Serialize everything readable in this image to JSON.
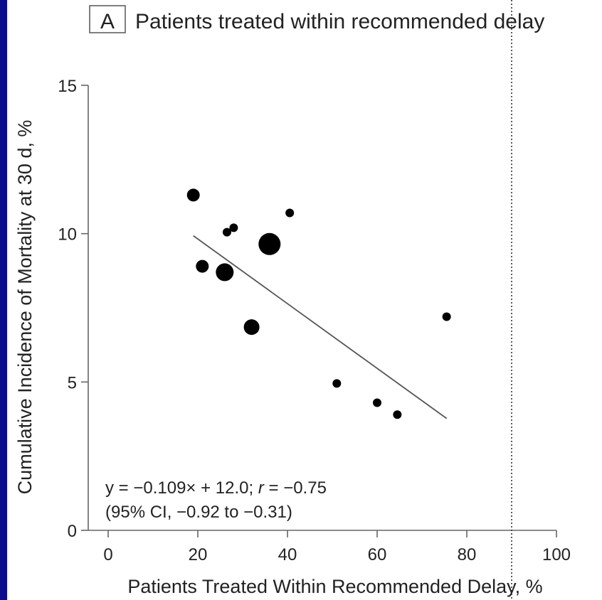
{
  "panel_letter": "A",
  "chart_data": {
    "type": "scatter",
    "title": "Patients treated within recommended delay",
    "xlabel": "Patients Treated Within Recommended Delay, %",
    "ylabel": "Cumulative Incidence of Mortality at 30 d, %",
    "xlim": [
      0,
      100
    ],
    "ylim": [
      0,
      15
    ],
    "x_ticks": [
      0,
      20,
      40,
      60,
      80,
      100
    ],
    "y_ticks": [
      0,
      5,
      10,
      15
    ],
    "grid": false,
    "points": [
      {
        "x": 19,
        "y": 11.3,
        "size": "medium"
      },
      {
        "x": 21,
        "y": 8.9,
        "size": "medium"
      },
      {
        "x": 26,
        "y": 8.7,
        "size": "large"
      },
      {
        "x": 26.5,
        "y": 10.05,
        "size": "small"
      },
      {
        "x": 28,
        "y": 10.2,
        "size": "small"
      },
      {
        "x": 32,
        "y": 6.85,
        "size": "medium-large"
      },
      {
        "x": 36,
        "y": 9.65,
        "size": "extra-large"
      },
      {
        "x": 40.5,
        "y": 10.7,
        "size": "small"
      },
      {
        "x": 51,
        "y": 4.95,
        "size": "small"
      },
      {
        "x": 60,
        "y": 4.3,
        "size": "small"
      },
      {
        "x": 64.5,
        "y": 3.9,
        "size": "small"
      },
      {
        "x": 75.5,
        "y": 7.2,
        "size": "small"
      }
    ],
    "regression": {
      "slope": -0.109,
      "intercept": 12.0,
      "x_range": [
        19,
        75.5
      ]
    },
    "reference_line_x": 90,
    "annotation": {
      "eq_prefix": "y = −0.109× + 12.0; ",
      "r_symbol": "r",
      "r_value": " = −0.75",
      "ci": "(95% CI, −0.92 to −0.31)"
    }
  }
}
